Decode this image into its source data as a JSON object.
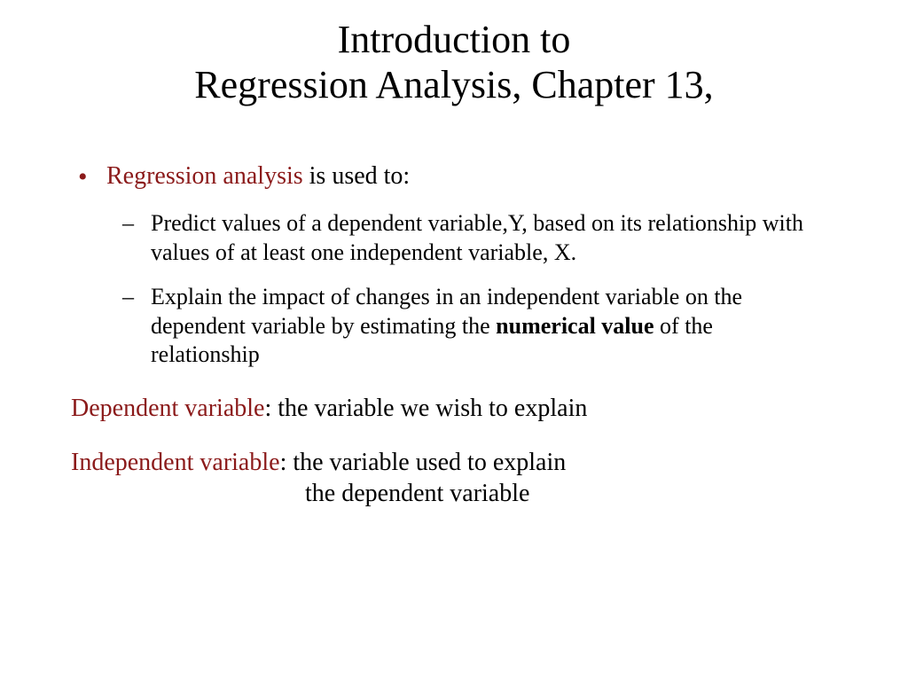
{
  "colors": {
    "background": "#ffffff",
    "text": "#000000",
    "term": "#8b1a1a",
    "bullet": "#8b1a1a"
  },
  "typography": {
    "family": "Times New Roman",
    "title_fontsize": 44,
    "body_fontsize": 28,
    "sub_fontsize": 26
  },
  "title": {
    "line1": "Introduction to",
    "line2": "Regression Analysis, Chapter 13,"
  },
  "main_bullet": {
    "term": "Regression analysis",
    "rest": " is used to:"
  },
  "sub_bullets": [
    {
      "text": "Predict values of a dependent variable,Y, based on its relationship with values of at least one independent variable, X."
    },
    {
      "pre": "Explain the impact of changes in an independent variable on the dependent variable by estimating the ",
      "bold": "numerical value",
      "post": " of the relationship"
    }
  ],
  "definitions": [
    {
      "term": "Dependent variable",
      "colon": ":  ",
      "text": "the variable we wish to explain"
    },
    {
      "term": "Independent variable",
      "colon": ":  ",
      "text": "the variable used to explain",
      "cont": "the dependent variable"
    }
  ]
}
